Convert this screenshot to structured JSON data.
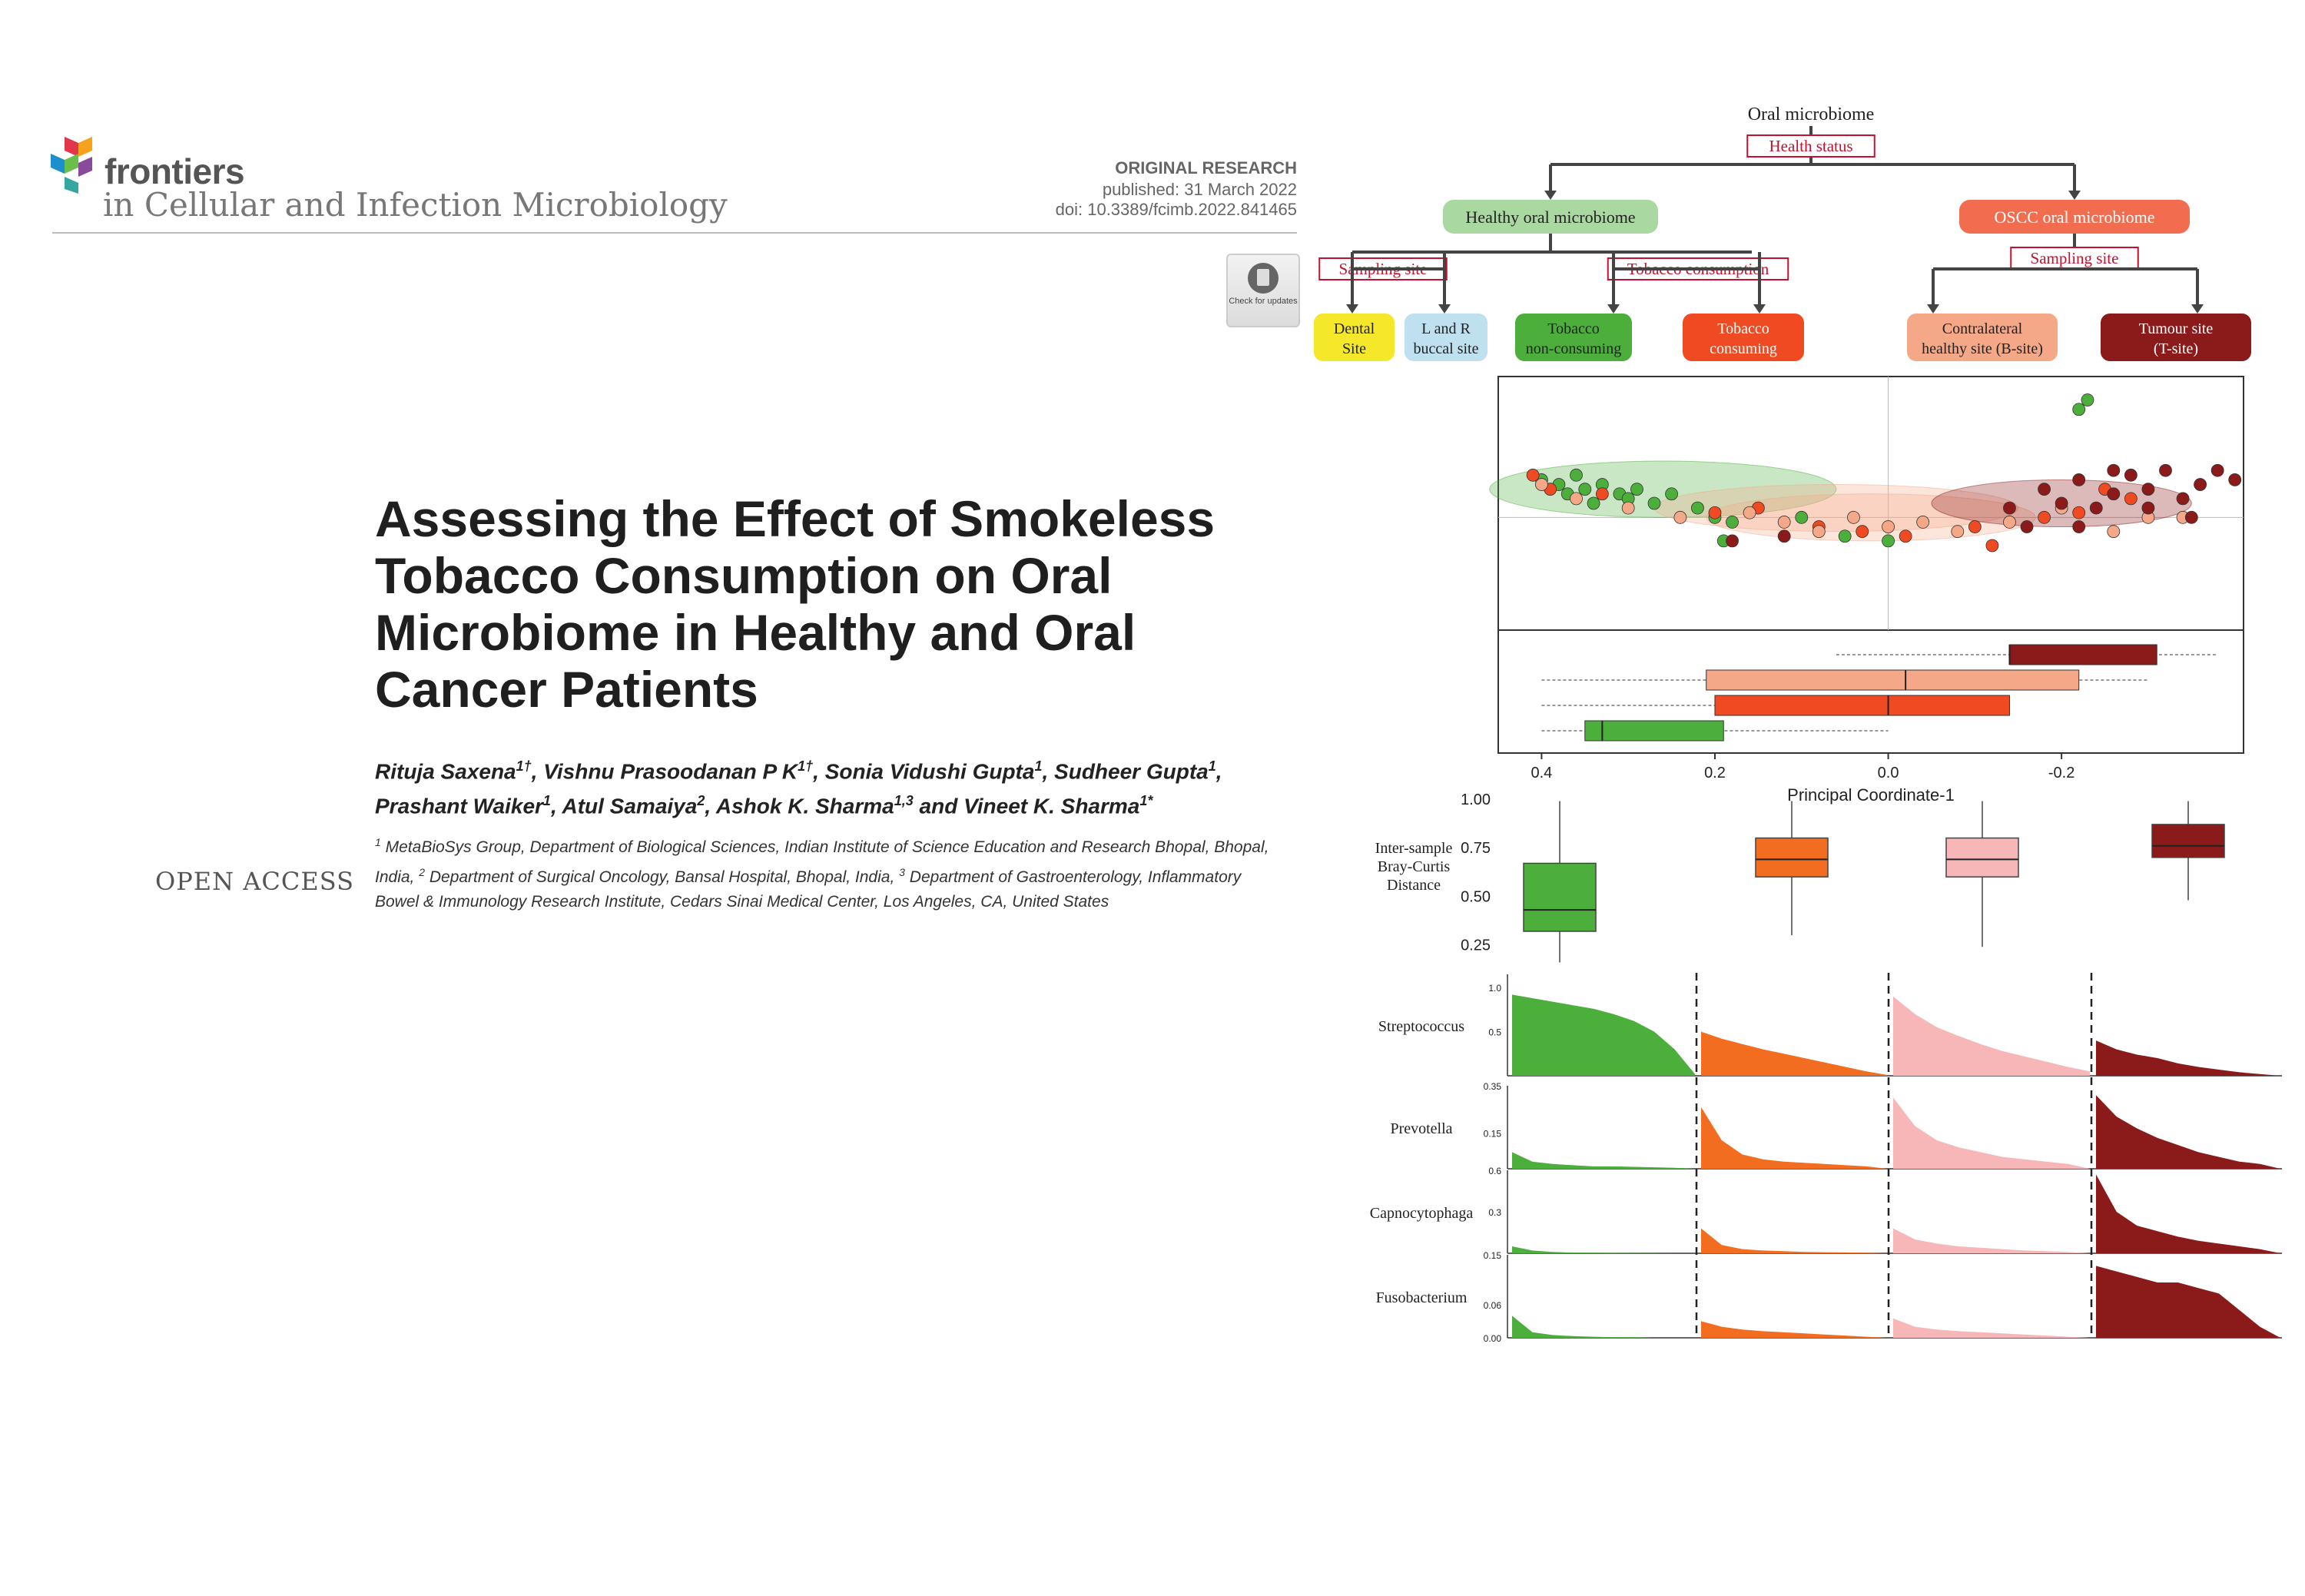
{
  "journal": {
    "brand": "frontiers",
    "name": "in Cellular and Infection Microbiology",
    "article_type": "ORIGINAL RESEARCH",
    "published": "published: 31 March 2022",
    "doi": "doi: 10.3389/fcimb.2022.841465",
    "check_updates": "Check for updates"
  },
  "article": {
    "title": "Assessing the Effect of Smokeless Tobacco Consumption on Oral Microbiome in Healthy and Oral Cancer Patients",
    "authors": [
      {
        "name": "Rituja Saxena",
        "sup": "1†",
        "sep": ", "
      },
      {
        "name": "Vishnu Prasoodanan P K",
        "sup": "1†",
        "sep": ", "
      },
      {
        "name": "Sonia Vidushi Gupta",
        "sup": "1",
        "sep": ", "
      },
      {
        "name": "Sudheer Gupta",
        "sup": "1",
        "sep": ", "
      },
      {
        "name": "Prashant Waiker",
        "sup": "1",
        "sep": ", "
      },
      {
        "name": "Atul Samaiya",
        "sup": "2",
        "sep": ", "
      },
      {
        "name": "Ashok K. Sharma",
        "sup": "1,3",
        "sep": " and "
      },
      {
        "name": "Vineet K. Sharma",
        "sup": "1*",
        "sep": ""
      }
    ],
    "affiliations": [
      {
        "sup": "1",
        "text": " MetaBioSys Group, Department of Biological Sciences, Indian Institute of Science Education and Research Bhopal, Bhopal, India, "
      },
      {
        "sup": "2",
        "text": " Department of Surgical Oncology, Bansal Hospital, Bhopal, India, "
      },
      {
        "sup": "3",
        "text": " Department of Gastroenterology, Inflammatory Bowel & Immunology Research Institute, Cedars Sinai Medical Center, Los Angeles, CA, United States"
      }
    ],
    "open_access": "OPEN ACCESS"
  },
  "figure": {
    "tree": {
      "root": "Oral microbiome",
      "root_split": "Health status",
      "left": "Healthy oral microbiome",
      "right": "OSCC oral microbiome",
      "left_split_a": "Sampling site",
      "left_split_b": "Tobacco consumption",
      "right_split": "Sampling site",
      "leaves": [
        {
          "lines": [
            "Dental",
            "Site"
          ],
          "color": "#f5e82a"
        },
        {
          "lines": [
            "L and R",
            "buccal site"
          ],
          "color": "#bfe0ef"
        },
        {
          "lines": [
            "Tobacco",
            "non-consuming"
          ],
          "color": "#4caf3c"
        },
        {
          "lines": [
            "Tobacco",
            "consuming"
          ],
          "color": "#f04a22"
        },
        {
          "lines": [
            "Contralateral",
            "healthy site (B-site)"
          ],
          "color": "#f4a888"
        },
        {
          "lines": [
            "Tumour site",
            "(T-site)"
          ],
          "color": "#8b1a1a"
        }
      ],
      "left_color": "#a9d8a0",
      "right_color": "#f26d50"
    },
    "chart_data": [
      {
        "type": "scatter",
        "xlabel": "Principal Coordinate-1",
        "xticks": [
          "0.4",
          "0.2",
          "0.0",
          "-0.2"
        ],
        "x_range": [
          0.45,
          -0.41
        ],
        "y_range": [
          -0.24,
          0.3
        ],
        "ellipses": [
          {
            "group": "Tobacco non-consuming",
            "cx": 0.26,
            "cy": 0.06,
            "rx": 0.2,
            "ry": 0.06,
            "color": "#4caf3c"
          },
          {
            "group": "Tobacco consuming",
            "cx": 0.06,
            "cy": 0.02,
            "rx": 0.21,
            "ry": 0.05,
            "color": "#f4a888"
          },
          {
            "group": "Contralateral healthy site (B-site)",
            "cx": 0.02,
            "cy": 0.0,
            "rx": 0.19,
            "ry": 0.05,
            "color": "#f4a888"
          },
          {
            "group": "Tumour site (T-site)",
            "cx": -0.2,
            "cy": 0.03,
            "rx": 0.15,
            "ry": 0.05,
            "color": "#8b1a1a"
          }
        ],
        "series": [
          {
            "color": "#4caf3c",
            "points": [
              [
                0.4,
                0.08
              ],
              [
                0.38,
                0.07
              ],
              [
                0.37,
                0.05
              ],
              [
                0.36,
                0.09
              ],
              [
                0.35,
                0.06
              ],
              [
                0.34,
                0.03
              ],
              [
                0.33,
                0.07
              ],
              [
                0.31,
                0.05
              ],
              [
                0.3,
                0.04
              ],
              [
                0.29,
                0.06
              ],
              [
                0.27,
                0.03
              ],
              [
                0.25,
                0.05
              ],
              [
                0.22,
                0.02
              ],
              [
                0.2,
                0.0
              ],
              [
                0.18,
                -0.01
              ],
              [
                0.1,
                0.0
              ],
              [
                0.05,
                -0.04
              ],
              [
                0.0,
                -0.05
              ],
              [
                -0.22,
                0.23
              ],
              [
                -0.23,
                0.25
              ],
              [
                0.19,
                -0.05
              ]
            ]
          },
          {
            "color": "#f04a22",
            "points": [
              [
                0.41,
                0.09
              ],
              [
                0.39,
                0.06
              ],
              [
                0.33,
                0.05
              ],
              [
                0.2,
                0.01
              ],
              [
                0.15,
                0.02
              ],
              [
                0.08,
                -0.02
              ],
              [
                0.03,
                -0.03
              ],
              [
                -0.02,
                -0.04
              ],
              [
                -0.1,
                -0.02
              ],
              [
                -0.18,
                0.0
              ],
              [
                -0.22,
                0.01
              ],
              [
                -0.25,
                0.06
              ],
              [
                -0.28,
                0.04
              ],
              [
                -0.12,
                -0.06
              ]
            ]
          },
          {
            "color": "#f4a888",
            "points": [
              [
                0.4,
                0.07
              ],
              [
                0.36,
                0.04
              ],
              [
                0.3,
                0.02
              ],
              [
                0.24,
                0.0
              ],
              [
                0.16,
                0.01
              ],
              [
                0.12,
                -0.01
              ],
              [
                0.08,
                -0.03
              ],
              [
                0.04,
                0.0
              ],
              [
                0.0,
                -0.02
              ],
              [
                -0.04,
                -0.01
              ],
              [
                -0.08,
                -0.03
              ],
              [
                -0.14,
                -0.01
              ],
              [
                -0.26,
                -0.03
              ],
              [
                -0.3,
                0.0
              ],
              [
                -0.34,
                0.0
              ],
              [
                -0.2,
                0.02
              ]
            ]
          },
          {
            "color": "#8b1a1a",
            "points": [
              [
                -0.14,
                0.02
              ],
              [
                -0.18,
                0.06
              ],
              [
                -0.2,
                0.03
              ],
              [
                -0.22,
                0.08
              ],
              [
                -0.24,
                0.02
              ],
              [
                -0.26,
                0.05
              ],
              [
                -0.28,
                0.09
              ],
              [
                -0.3,
                0.06
              ],
              [
                -0.32,
                0.1
              ],
              [
                -0.34,
                0.04
              ],
              [
                -0.36,
                0.07
              ],
              [
                -0.38,
                0.1
              ],
              [
                -0.4,
                0.08
              ],
              [
                -0.22,
                -0.02
              ],
              [
                -0.16,
                -0.02
              ],
              [
                0.18,
                -0.05
              ],
              [
                0.12,
                -0.04
              ],
              [
                -0.26,
                0.1
              ],
              [
                -0.3,
                0.02
              ],
              [
                -0.35,
                0.0
              ]
            ]
          }
        ],
        "pc1_boxplots": [
          {
            "color": "#8b1a1a",
            "box": [
              -0.14,
              -0.31
            ],
            "median": -0.14,
            "whisker": [
              0.06,
              -0.38
            ]
          },
          {
            "color": "#f4a888",
            "box": [
              0.21,
              -0.22
            ],
            "median": -0.02,
            "whisker": [
              0.4,
              -0.3
            ]
          },
          {
            "color": "#f04a22",
            "box": [
              0.2,
              -0.14
            ],
            "median": 0.0,
            "whisker": [
              0.4,
              -0.05
            ]
          },
          {
            "color": "#4caf3c",
            "box": [
              0.35,
              0.19
            ],
            "median": 0.33,
            "whisker": [
              0.4,
              0.0
            ]
          }
        ]
      },
      {
        "type": "box",
        "ylabel": "Inter-sample Bray-Curtis Distance",
        "yticks": [
          "1.00",
          "0.75",
          "0.50",
          "0.25"
        ],
        "y_range": [
          0.15,
          1.0
        ],
        "boxes": [
          {
            "color": "#4caf3c",
            "q1": 0.32,
            "median": 0.43,
            "q3": 0.67,
            "whisker": [
              0.16,
              0.99
            ]
          },
          {
            "color": "#f26d1f",
            "q1": 0.6,
            "median": 0.69,
            "q3": 0.8,
            "whisker": [
              0.3,
              0.99
            ]
          },
          {
            "color": "#f7b6b8",
            "q1": 0.6,
            "median": 0.69,
            "q3": 0.8,
            "whisker": [
              0.24,
              0.99
            ]
          },
          {
            "color": "#8b1a1a",
            "q1": 0.7,
            "median": 0.76,
            "q3": 0.87,
            "whisker": [
              0.48,
              0.99
            ]
          }
        ]
      },
      {
        "type": "area",
        "groups": [
          "#4caf3c",
          "#f26d1f",
          "#f7b6b8",
          "#8b1a1a"
        ],
        "panels": [
          {
            "label": "Streptococcus",
            "ticks": [
              "1.0",
              "0.5"
            ],
            "ymax": 1.15,
            "profiles": [
              [
                0.92,
                0.88,
                0.84,
                0.8,
                0.76,
                0.7,
                0.62,
                0.5,
                0.3,
                0.02
              ],
              [
                0.5,
                0.42,
                0.36,
                0.3,
                0.25,
                0.2,
                0.15,
                0.1,
                0.05,
                0.01
              ],
              [
                0.9,
                0.7,
                0.55,
                0.45,
                0.36,
                0.28,
                0.22,
                0.16,
                0.1,
                0.05
              ],
              [
                0.4,
                0.3,
                0.24,
                0.2,
                0.14,
                0.1,
                0.07,
                0.04,
                0.02,
                0.0
              ]
            ]
          },
          {
            "label": "Prevotella",
            "ticks": [
              "0.35",
              "0.15"
            ],
            "ymax": 0.35,
            "profiles": [
              [
                0.07,
                0.03,
                0.02,
                0.015,
                0.01,
                0.01,
                0.008,
                0.006,
                0.004,
                0.0
              ],
              [
                0.26,
                0.12,
                0.06,
                0.04,
                0.03,
                0.025,
                0.02,
                0.015,
                0.01,
                0.0
              ],
              [
                0.3,
                0.18,
                0.12,
                0.09,
                0.07,
                0.05,
                0.04,
                0.03,
                0.02,
                0.0
              ],
              [
                0.31,
                0.22,
                0.17,
                0.13,
                0.1,
                0.07,
                0.05,
                0.03,
                0.02,
                0.0
              ]
            ]
          },
          {
            "label": "Capnocytophaga",
            "ticks": [
              "0.6",
              "0.3"
            ],
            "ymax": 0.6,
            "profiles": [
              [
                0.05,
                0.02,
                0.01,
                0.005,
                0.004,
                0.003,
                0.002,
                0.001,
                0.0,
                0.0
              ],
              [
                0.18,
                0.06,
                0.03,
                0.02,
                0.015,
                0.01,
                0.008,
                0.006,
                0.004,
                0.0
              ],
              [
                0.18,
                0.1,
                0.07,
                0.05,
                0.04,
                0.03,
                0.02,
                0.015,
                0.01,
                0.0
              ],
              [
                0.57,
                0.3,
                0.2,
                0.16,
                0.12,
                0.09,
                0.07,
                0.05,
                0.03,
                0.0
              ]
            ]
          },
          {
            "label": "Fusobacterium",
            "ticks": [
              "0.15",
              "0.06",
              "0.00"
            ],
            "ymax": 0.15,
            "profiles": [
              [
                0.04,
                0.01,
                0.005,
                0.003,
                0.002,
                0.001,
                0.001,
                0.0,
                0.0,
                0.0
              ],
              [
                0.03,
                0.02,
                0.015,
                0.012,
                0.01,
                0.008,
                0.006,
                0.004,
                0.002,
                0.0
              ],
              [
                0.035,
                0.02,
                0.015,
                0.012,
                0.01,
                0.008,
                0.006,
                0.004,
                0.002,
                0.0
              ],
              [
                0.13,
                0.12,
                0.11,
                0.1,
                0.1,
                0.09,
                0.08,
                0.05,
                0.02,
                0.0
              ]
            ]
          }
        ]
      }
    ]
  }
}
